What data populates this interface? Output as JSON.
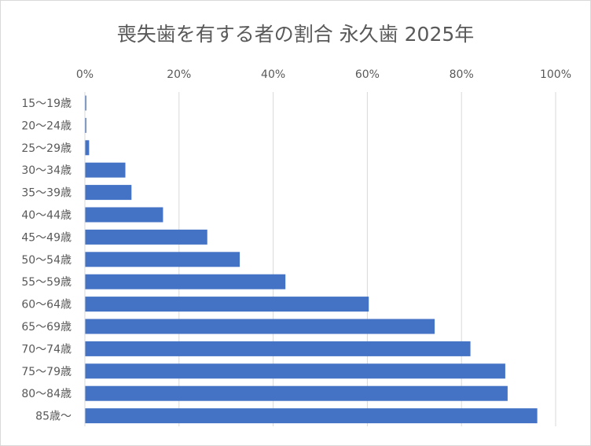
{
  "chart_data": {
    "type": "bar",
    "orientation": "horizontal",
    "title": "喪失歯を有する者の割合 永久歯 2025年",
    "xlabel": "",
    "ylabel": "",
    "categories": [
      "15～19歳",
      "20～24歳",
      "25～29歳",
      "30～34歳",
      "35～39歳",
      "40～44歳",
      "45～49歳",
      "50～54歳",
      "55～59歳",
      "60～64歳",
      "65～69歳",
      "70～74歳",
      "75～79歳",
      "80～84歳",
      "85歳～"
    ],
    "values": [
      0.3,
      0.3,
      0.9,
      8.6,
      9.9,
      16.6,
      26.0,
      32.9,
      42.6,
      60.3,
      74.3,
      81.9,
      89.3,
      89.8,
      96.1
    ],
    "xlim": [
      0,
      100
    ],
    "xticks": [
      "0%",
      "20%",
      "40%",
      "60%",
      "80%",
      "100%"
    ],
    "grid": true,
    "legend": "none",
    "bar_color": "#4472c4",
    "grid_color": "#d9d9d9"
  }
}
